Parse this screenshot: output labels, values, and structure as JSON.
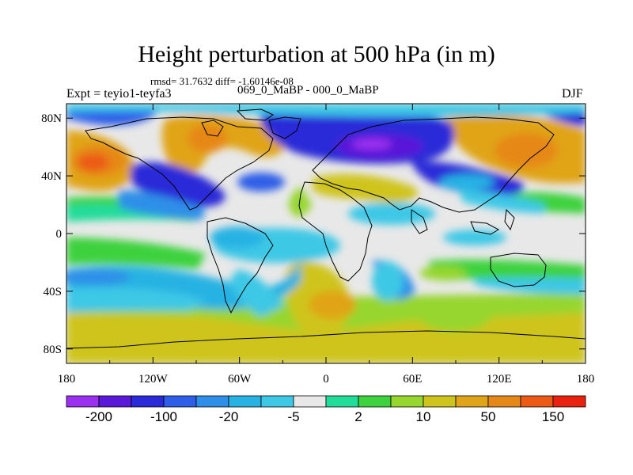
{
  "title": "Height perturbation at 500 hPa (in m)",
  "stats_text": "rmsd= 31.7632 diff= -1.60146e-08",
  "experiment_label": "Expt = teyio1-teyfa3",
  "subtitle": "069_0_MaBP - 000_0_MaBP",
  "season": "DJF",
  "map": {
    "lon_range": [
      -180,
      180
    ],
    "lat_range": [
      -90,
      90
    ],
    "x_ticks": [
      {
        "value": -180,
        "label": "180"
      },
      {
        "value": -120,
        "label": "120W"
      },
      {
        "value": -60,
        "label": "60W"
      },
      {
        "value": 0,
        "label": "0"
      },
      {
        "value": 60,
        "label": "60E"
      },
      {
        "value": 120,
        "label": "120E"
      },
      {
        "value": 180,
        "label": "180"
      }
    ],
    "y_ticks": [
      {
        "value": 80,
        "label": "80N"
      },
      {
        "value": 40,
        "label": "40N"
      },
      {
        "value": 0,
        "label": "0"
      },
      {
        "value": -40,
        "label": "40S"
      },
      {
        "value": -80,
        "label": "80S"
      }
    ]
  },
  "colorbar": {
    "colors": [
      "#9b30f0",
      "#5a18d8",
      "#2a2ad8",
      "#2f5ee8",
      "#2f8fe8",
      "#26b2e3",
      "#3ec8e6",
      "#e8e8e8",
      "#22dc9a",
      "#3ed23e",
      "#96d62e",
      "#cfc41e",
      "#e0a418",
      "#e68818",
      "#ec5a16",
      "#e8220e"
    ],
    "labels": [
      "-200",
      "-100",
      "-20",
      "-5",
      "2",
      "10",
      "50",
      "150"
    ]
  },
  "colors": {
    "background_field": "#e8e8e8",
    "coastline": "#000000"
  }
}
